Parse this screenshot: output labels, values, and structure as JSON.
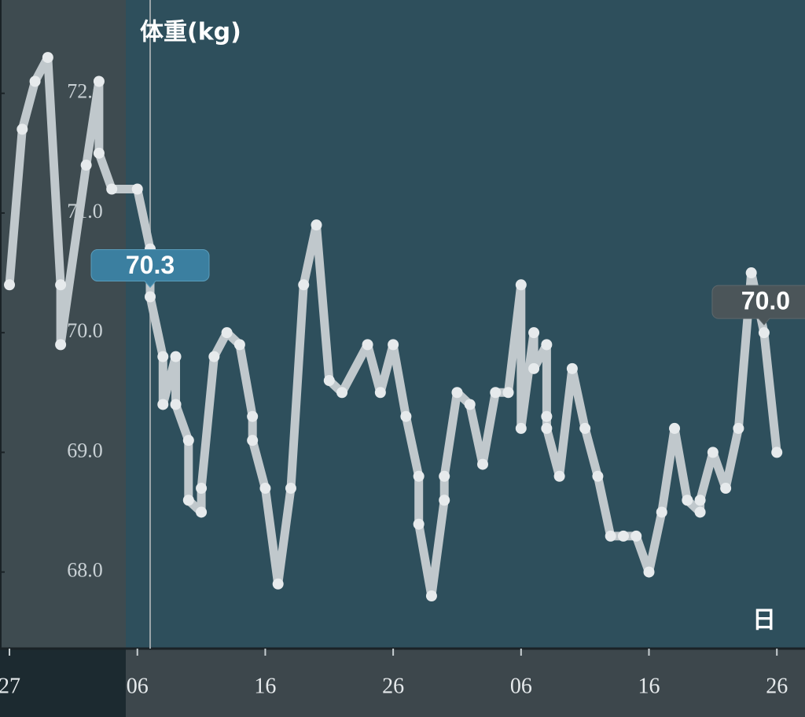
{
  "chart_data": {
    "type": "line",
    "title": "体重(kg)",
    "x_label": "日",
    "x": [
      0,
      1,
      2,
      3,
      4,
      4,
      6,
      7,
      7,
      8,
      10,
      11,
      11,
      12,
      12,
      13,
      13,
      14,
      14,
      15,
      15,
      16,
      17,
      18,
      19,
      19,
      20,
      21,
      22,
      23,
      24,
      25,
      26,
      28,
      29,
      30,
      31,
      32,
      32,
      33,
      34,
      34,
      35,
      36,
      37,
      38,
      39,
      40,
      40,
      41,
      41,
      42,
      42,
      42,
      43,
      44,
      45,
      46,
      47,
      48,
      49,
      50,
      51,
      52,
      53,
      54,
      54,
      55,
      56,
      57,
      58,
      59,
      60
    ],
    "values": [
      70.4,
      71.7,
      72.1,
      72.3,
      70.4,
      69.9,
      71.4,
      72.1,
      71.5,
      71.2,
      71.2,
      70.7,
      70.3,
      69.8,
      69.4,
      69.8,
      69.4,
      69.1,
      68.6,
      68.5,
      68.7,
      69.8,
      70.0,
      69.9,
      69.3,
      69.1,
      68.7,
      67.9,
      68.7,
      70.4,
      70.9,
      69.6,
      69.5,
      69.9,
      69.5,
      69.9,
      69.3,
      68.8,
      68.4,
      67.8,
      68.6,
      68.8,
      69.5,
      69.4,
      68.9,
      69.5,
      69.5,
      70.4,
      69.2,
      70.0,
      69.7,
      69.9,
      69.3,
      69.2,
      68.8,
      69.7,
      69.2,
      68.8,
      68.3,
      68.3,
      68.3,
      68.0,
      68.5,
      69.2,
      68.6,
      68.5,
      68.6,
      69.0,
      68.7,
      69.2,
      70.5,
      70.0,
      69.0
    ],
    "color": "#c0c8cc",
    "marker_color": "#e6eaec",
    "xlim": [
      -0.74,
      62.2
    ],
    "xticks": [
      {
        "value": 0,
        "label": "27"
      },
      {
        "value": 10,
        "label": "06"
      },
      {
        "value": 20,
        "label": "16"
      },
      {
        "value": 30,
        "label": "26"
      },
      {
        "value": 40,
        "label": "06"
      },
      {
        "value": 50,
        "label": "16"
      },
      {
        "value": 60,
        "label": "26"
      }
    ],
    "ylim": [
      67.36,
      72.78
    ],
    "yticks": [
      {
        "value": 68,
        "label": "68.0"
      },
      {
        "value": 69,
        "label": "69.0"
      },
      {
        "value": 70,
        "label": "70.0"
      },
      {
        "value": 71,
        "label": "71.0"
      },
      {
        "value": 72,
        "label": "72.0"
      }
    ],
    "grid": false,
    "highlight": {
      "x": 11,
      "value": 70.3
    },
    "reference": {
      "x": 59,
      "value": 70,
      "label": "70.0"
    }
  }
}
